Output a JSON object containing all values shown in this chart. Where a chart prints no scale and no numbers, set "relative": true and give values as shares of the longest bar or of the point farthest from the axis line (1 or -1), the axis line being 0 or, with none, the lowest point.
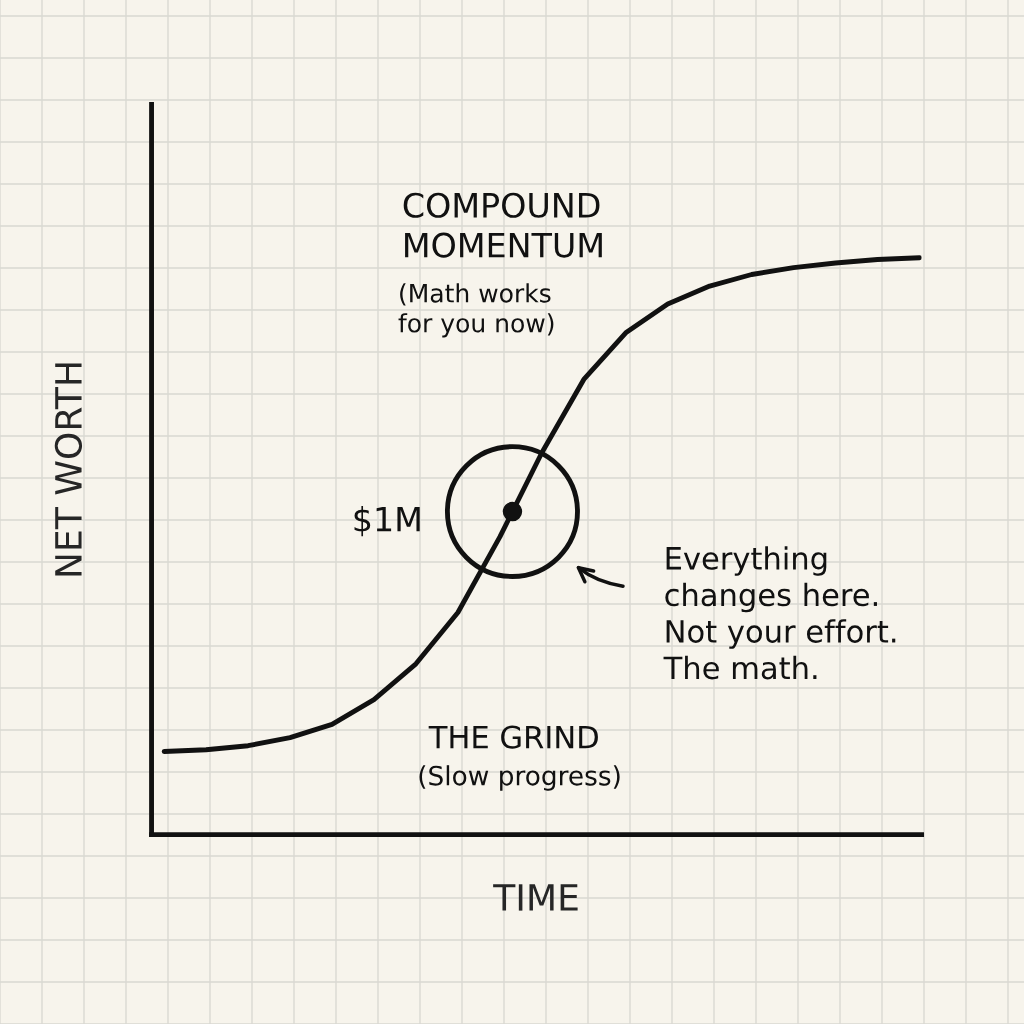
{
  "chart_data": {
    "type": "line",
    "relative": true,
    "xlabel": "TIME",
    "ylabel": "NET WORTH",
    "categories": [
      null,
      null,
      null,
      null,
      null,
      null,
      null,
      null,
      null,
      null,
      null,
      null,
      null,
      null,
      null,
      null,
      null,
      null,
      null
    ],
    "series": [
      {
        "color": "#111111",
        "values": [
          0.144,
          0.147,
          0.154,
          0.168,
          0.191,
          0.234,
          0.296,
          0.385,
          0.516,
          0.662,
          0.789,
          0.87,
          0.92,
          0.951,
          0.971,
          0.983,
          0.991,
          0.997,
          1
        ]
      }
    ],
    "annotations": [
      "COMPOUND\nMOMENTUM",
      "(Math works\nfor you now)",
      "$1M",
      "Everything\nchanges here.\nNot your effort.\nThe math.",
      "THE GRIND",
      "(Slow progress)"
    ],
    "grid": true,
    "marker": "none",
    "line_style": "solid"
  }
}
